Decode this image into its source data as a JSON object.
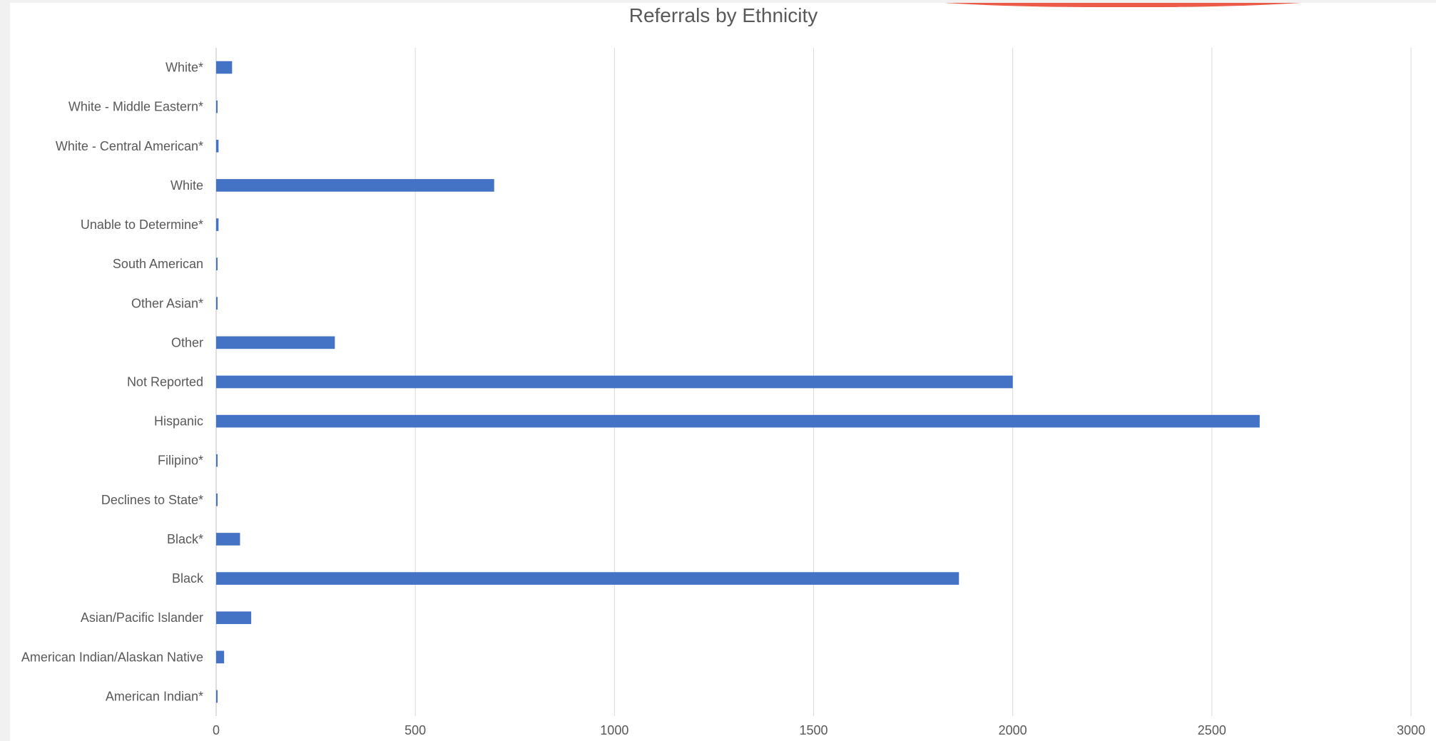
{
  "colors": {
    "bar": "#4472C4",
    "grid": "#d9d9d9",
    "text": "#595959",
    "accent": "#ec5b48"
  },
  "chart_data": {
    "type": "bar",
    "orientation": "horizontal",
    "title": "Referrals by Ethnicity",
    "xlabel": "",
    "ylabel": "",
    "xlim": [
      0,
      3000
    ],
    "ticks": [
      0,
      500,
      1000,
      1500,
      2000,
      2500,
      3000
    ],
    "grid": true,
    "categories": [
      "White*",
      "White - Middle Eastern*",
      "White - Central American*",
      "White",
      "Unable to Determine*",
      "South American",
      "Other Asian*",
      "Other",
      "Not Reported",
      "Hispanic",
      "Filipino*",
      "Declines to State*",
      "Black*",
      "Black",
      "Asian/Pacific Islander",
      "American Indian/Alaskan Native",
      "American Indian*"
    ],
    "values": [
      40,
      3,
      6,
      698,
      6,
      3,
      3,
      298,
      2000,
      2620,
      3,
      3,
      60,
      1865,
      88,
      20,
      3
    ]
  }
}
